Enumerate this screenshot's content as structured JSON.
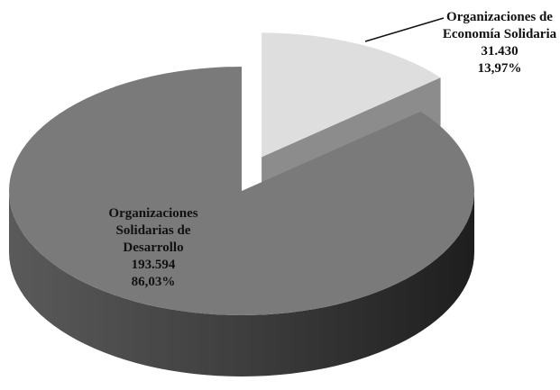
{
  "chart_data": {
    "type": "pie3d",
    "categories": [
      "Organizaciones de Economía Solidaria",
      "Organizaciones Solidarias de Desarrollo"
    ],
    "values": [
      31430,
      193594
    ],
    "value_labels": [
      "31.430",
      "193.594"
    ],
    "percentages": [
      13.97,
      86.03
    ],
    "percentage_labels": [
      "13,97%",
      "86,03%"
    ],
    "colors": [
      "#dedede",
      "#7a7a7a"
    ]
  }
}
